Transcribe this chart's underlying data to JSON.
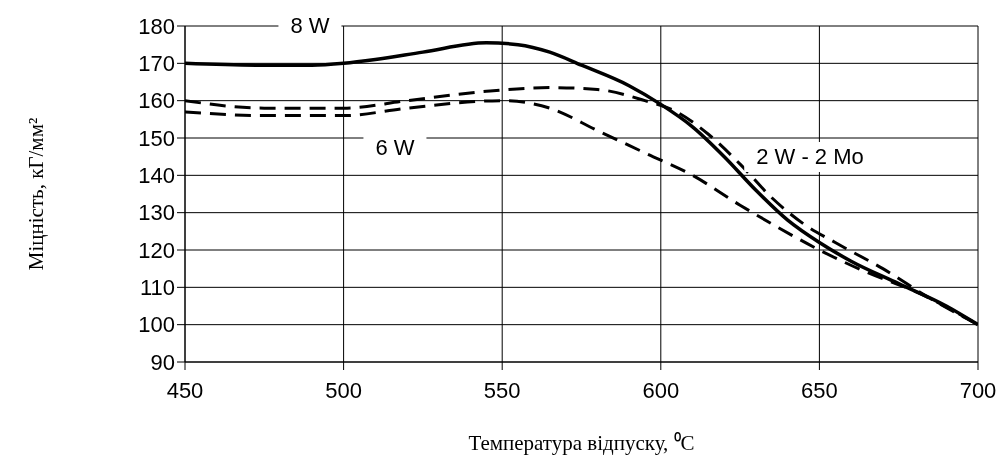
{
  "chart_data": {
    "type": "line",
    "xlabel": "Температура відпуску, ⁰C",
    "ylabel": "Міцність, кГ/мм²",
    "xlim": [
      450,
      700
    ],
    "xticks": [
      450,
      500,
      550,
      600,
      650,
      700
    ],
    "ylim": [
      90,
      180
    ],
    "yticks": [
      90,
      100,
      110,
      120,
      130,
      140,
      150,
      160,
      170,
      180
    ],
    "grid": true,
    "marker": "none",
    "series": [
      {
        "name": "8 W",
        "color": "#000000",
        "line_style": "solid",
        "x": [
          450,
          475,
          490,
          500,
          510,
          525,
          545,
          555,
          565,
          575,
          590,
          600,
          610,
          620,
          630,
          640,
          650,
          660,
          675,
          690,
          700
        ],
        "values": [
          170,
          169.5,
          169.5,
          170,
          171,
          173,
          175.5,
          175,
          173,
          169.5,
          164,
          159,
          153,
          145,
          136,
          128,
          122,
          117,
          111,
          105,
          100
        ]
      },
      {
        "name": "2 W - 2 Mo",
        "color": "#000000",
        "line_style": "dashed",
        "x": [
          450,
          475,
          500,
          520,
          545,
          565,
          580,
          595,
          605,
          615,
          625,
          635,
          645,
          655,
          670,
          685,
          700
        ],
        "values": [
          160,
          158,
          158,
          160,
          162.5,
          163.5,
          163,
          160,
          157,
          151,
          143,
          134,
          127,
          122,
          115,
          107,
          100
        ]
      },
      {
        "name": "6 W",
        "color": "#000000",
        "line_style": "dashed",
        "x": [
          450,
          475,
          500,
          520,
          550,
          565,
          580,
          595,
          610,
          625,
          635,
          650,
          665,
          680,
          700
        ],
        "values": [
          157,
          156,
          156,
          158,
          160,
          158,
          152,
          146,
          140,
          132,
          127,
          120,
          114,
          109,
          100
        ]
      }
    ]
  }
}
